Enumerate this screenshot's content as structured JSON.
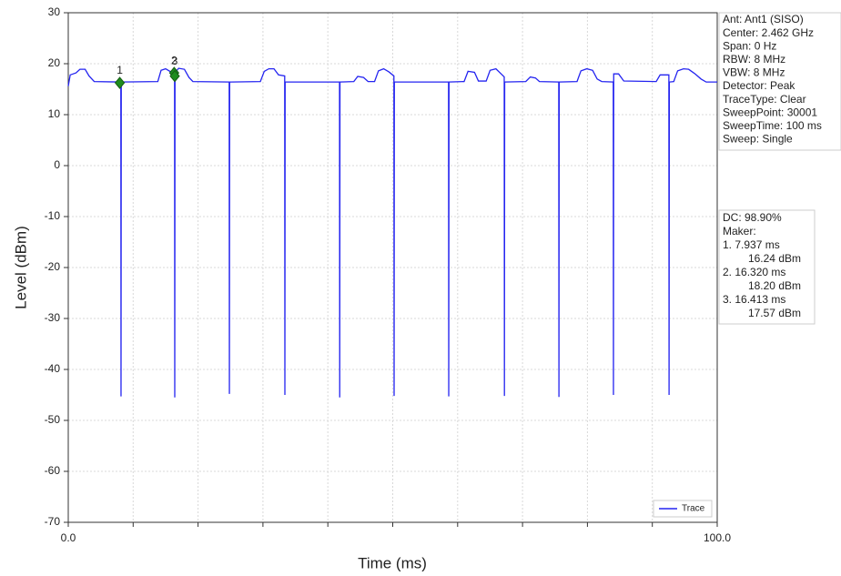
{
  "chart_data": {
    "type": "line",
    "xlabel": "Time (ms)",
    "ylabel": "Level (dBm)",
    "xlim": [
      0,
      100
    ],
    "xticks": [
      {
        "value": 0,
        "label": "0.0"
      },
      {
        "value": 100,
        "label": "100.0"
      }
    ],
    "xminor_ticks": [
      10,
      20,
      30,
      40,
      50,
      60,
      70,
      80,
      90
    ],
    "ylim": [
      -70,
      30
    ],
    "yticks": [
      -70,
      -60,
      -50,
      -40,
      -30,
      -20,
      -10,
      0,
      10,
      20,
      30
    ],
    "grid": true,
    "legend": "lower right",
    "series": [
      {
        "name": "Trace",
        "color": "#2424f0",
        "x": [
          0,
          0.3,
          1.2,
          1.8,
          2.6,
          3.2,
          4.0,
          8.1,
          8.13,
          8.17,
          13.8,
          14.3,
          15.0,
          15.8,
          16.38,
          16.41,
          16.45,
          17.0,
          17.9,
          18.6,
          19.2,
          24.8,
          24.83,
          24.87,
          29.6,
          30.2,
          30.9,
          31.7,
          32.4,
          33.35,
          33.38,
          33.42,
          41.8,
          41.83,
          41.87,
          44.0,
          44.6,
          45.5,
          46.2,
          47.2,
          47.8,
          48.6,
          49.4,
          50.18,
          50.21,
          50.25,
          58.6,
          58.63,
          58.67,
          61.0,
          61.6,
          62.6,
          63.2,
          64.4,
          65.0,
          65.9,
          66.7,
          67.18,
          67.21,
          67.25,
          70.5,
          71.2,
          72.0,
          72.6,
          75.58,
          75.61,
          75.65,
          78.4,
          79.0,
          79.9,
          80.8,
          81.5,
          82.2,
          83.98,
          84.01,
          84.05,
          84.8,
          85.6,
          90.6,
          91.2,
          92.55,
          92.58,
          92.62,
          93.3,
          93.9,
          94.8,
          95.6,
          96.6,
          97.5,
          98.3,
          100
        ],
        "values": [
          15.6,
          17.8,
          18.2,
          18.9,
          18.9,
          17.6,
          16.5,
          16.4,
          -45.3,
          16.4,
          16.5,
          18.7,
          19.0,
          18.4,
          18.2,
          -45.5,
          18.2,
          19.1,
          18.9,
          17.3,
          16.5,
          16.4,
          -44.8,
          16.4,
          16.5,
          18.5,
          19.0,
          19.0,
          17.8,
          17.6,
          -45,
          16.4,
          16.4,
          -45.5,
          16.4,
          16.5,
          17.5,
          17.3,
          16.5,
          16.5,
          18.6,
          19.0,
          18.4,
          17.6,
          -45.2,
          16.4,
          16.4,
          -45.3,
          16.4,
          16.5,
          18.5,
          18.3,
          16.6,
          16.6,
          18.7,
          19.0,
          18.0,
          17.4,
          -45.2,
          16.4,
          16.5,
          17.4,
          17.2,
          16.5,
          16.4,
          -45.4,
          16.4,
          16.5,
          18.6,
          19.0,
          18.7,
          17.0,
          16.5,
          16.4,
          -45.0,
          18.0,
          18.0,
          16.6,
          16.5,
          17.8,
          17.8,
          -45.0,
          16.4,
          16.5,
          18.6,
          19.0,
          18.9,
          18.0,
          17.0,
          16.4,
          16.4
        ]
      }
    ],
    "markers": {
      "color": "#1e8c1e",
      "labels": [
        "1",
        "2",
        "3"
      ],
      "x": [
        7.937,
        16.32,
        16.413
      ],
      "values": [
        16.24,
        18.2,
        17.57
      ]
    },
    "info_panel": [
      "Ant: Ant1 (SISO)",
      "Center: 2.462 GHz",
      "Span: 0 Hz",
      "RBW: 8 MHz",
      "VBW: 8 MHz",
      "Detector: Peak",
      "TraceType: Clear",
      "SweepPoint: 30001",
      "SweepTime: 100 ms",
      "Sweep: Single"
    ],
    "marker_panel": {
      "dc": "DC: 98.90%",
      "heading": "Maker:",
      "readouts": [
        {
          "time": "1. 7.937 ms",
          "level": "16.24 dBm"
        },
        {
          "time": "2. 16.320 ms",
          "level": "18.20 dBm"
        },
        {
          "time": "3. 16.413 ms",
          "level": "17.57 dBm"
        }
      ]
    }
  }
}
